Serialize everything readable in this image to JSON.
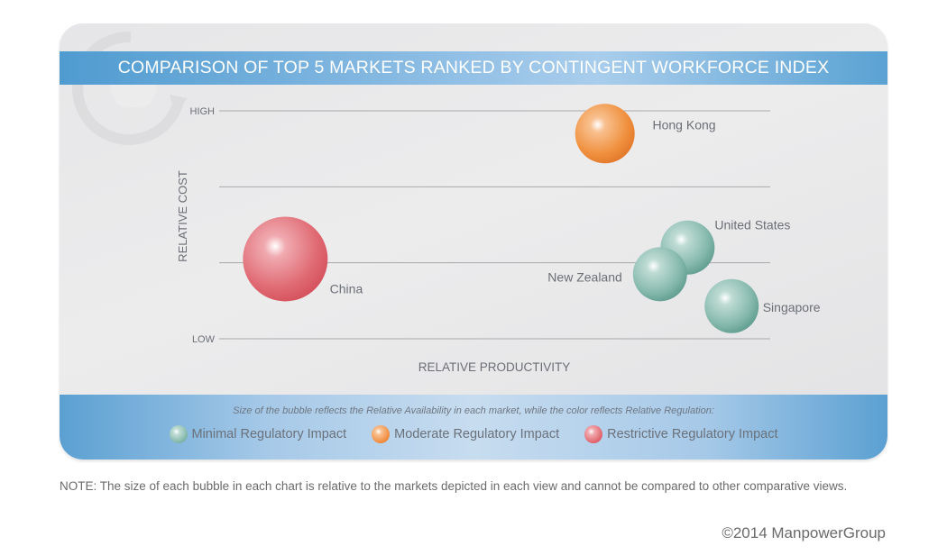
{
  "chart_data": {
    "type": "scatter",
    "subtype": "bubble",
    "title": "COMPARISON OF TOP 5 MARKETS RANKED BY CONTINGENT WORKFORCE INDEX",
    "xlabel": "RELATIVE PRODUCTIVITY",
    "ylabel": "RELATIVE COST",
    "xlim": [
      0,
      100
    ],
    "ylim": [
      0,
      3
    ],
    "y_tick_labels": [
      {
        "value": 3,
        "label": "HIGH"
      },
      {
        "value": 2,
        "label": ""
      },
      {
        "value": 1,
        "label": ""
      },
      {
        "value": 0,
        "label": "LOW"
      }
    ],
    "grid": true,
    "points": [
      {
        "name": "China",
        "x": 12,
        "y": 1.05,
        "size": 47,
        "category": "Restrictive Regulatory Impact"
      },
      {
        "name": "Hong Kong",
        "x": 70,
        "y": 2.7,
        "size": 33,
        "category": "Moderate Regulatory Impact"
      },
      {
        "name": "United States",
        "x": 85,
        "y": 1.2,
        "size": 30,
        "category": "Minimal Regulatory Impact"
      },
      {
        "name": "New Zealand",
        "x": 80,
        "y": 0.85,
        "size": 30,
        "category": "Minimal Regulatory Impact"
      },
      {
        "name": "Singapore",
        "x": 93,
        "y": 0.43,
        "size": 30,
        "category": "Minimal Regulatory Impact"
      }
    ],
    "legend": {
      "caption": "Size of the bubble reflects the Relative Availability in each market, while the color reflects Relative Regulation:",
      "placement": "bottom",
      "entries": [
        {
          "label": "Minimal Regulatory Impact",
          "color": "#7fb5a8"
        },
        {
          "label": "Moderate Regulatory Impact",
          "color": "#f08a3c"
        },
        {
          "label": "Restrictive Regulatory Impact",
          "color": "#e0616a"
        }
      ]
    }
  },
  "note": "NOTE: The size of each bubble in each chart is relative to the markets depicted in each view and cannot be compared to other comparative views.",
  "copyright": "©2014 ManpowerGroup"
}
